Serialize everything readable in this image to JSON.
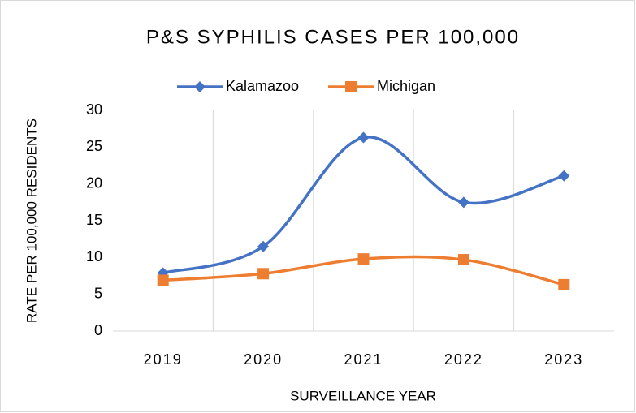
{
  "chart_data": {
    "type": "line",
    "title": "P&S SYPHILIS CASES PER 100,000",
    "x_label": "SURVEILLANCE YEAR",
    "y_label": "RATE PER 100,000 RESIDENTS",
    "categories": [
      "2019",
      "2020",
      "2021",
      "2022",
      "2023"
    ],
    "series": [
      {
        "name": "Kalamazoo",
        "color": "#4472c4",
        "marker": "diamond",
        "values": [
          7.9,
          11.5,
          26.3,
          17.5,
          21.1
        ]
      },
      {
        "name": "Michigan",
        "color": "#ed7d31",
        "marker": "square",
        "values": [
          6.9,
          7.8,
          9.8,
          9.7,
          6.3
        ]
      }
    ],
    "ylim": [
      0,
      30
    ],
    "yticks": [
      0,
      5,
      10,
      15,
      20,
      25,
      30
    ],
    "grid": true,
    "smooth": true,
    "legend": "top"
  }
}
